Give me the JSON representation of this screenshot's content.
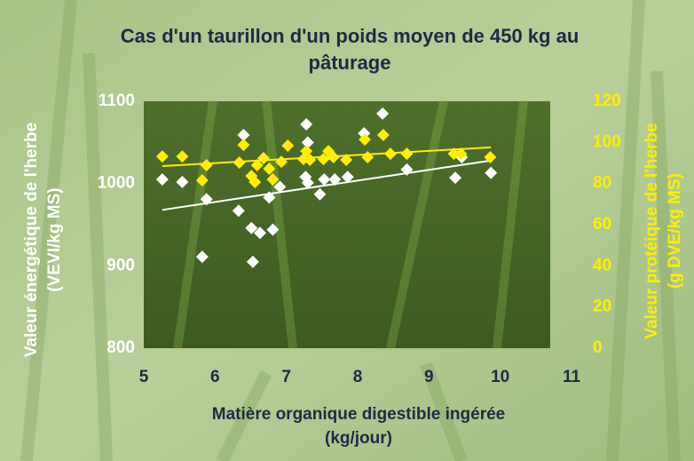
{
  "chart_data": {
    "type": "scatter",
    "title": [
      "Cas d'un taurillon d'un poids moyen de 450 kg au",
      "pâturage"
    ],
    "x_label": [
      "Matière organique digestible ingérée",
      "(kg/jour)"
    ],
    "y_label": [
      "Valeur énergétique de l'herbe",
      "(VEVI/kg MS)"
    ],
    "y2_label": [
      "Valeur protéique de l'herbe",
      "(g DVE/kg MS)"
    ],
    "xlim": [
      5,
      11
    ],
    "xticks": [
      5,
      6,
      7,
      8,
      9,
      10,
      11
    ],
    "ylim": [
      800,
      1100
    ],
    "yticks": [
      800,
      900,
      1000,
      1100
    ],
    "y2lim": [
      0,
      120
    ],
    "y2ticks": [
      0,
      20,
      40,
      60,
      80,
      100,
      120
    ],
    "series": [
      {
        "color": "#ffffff",
        "axis": "y",
        "x": [
          5.26,
          5.54,
          5.82,
          5.88,
          6.33,
          6.4,
          6.51,
          6.53,
          6.63,
          6.76,
          6.81,
          6.91,
          7.28,
          7.27,
          7.3,
          7.47,
          7.53,
          7.68,
          7.86,
          8.09,
          8.35,
          8.69,
          9.37,
          9.46,
          9.87,
          7.3
        ],
        "values": [
          1005,
          1002,
          911,
          981,
          967,
          1059,
          946,
          905,
          940,
          983,
          944,
          996,
          1072,
          1008,
          1001,
          987,
          1005,
          1005,
          1008,
          1061,
          1085,
          1017,
          1007,
          1032,
          1013,
          1050
        ]
      },
      {
        "color": "#ffee00",
        "axis": "y2",
        "x": [
          5.26,
          5.54,
          5.82,
          5.88,
          6.34,
          6.4,
          6.51,
          6.56,
          6.59,
          6.68,
          6.76,
          6.81,
          6.93,
          7.02,
          7.24,
          7.28,
          7.33,
          7.52,
          7.59,
          7.66,
          7.84,
          8.1,
          8.14,
          8.36,
          8.46,
          8.69,
          9.35,
          9.45,
          9.86
        ],
        "values": [
          93.2,
          93.2,
          81.6,
          88.9,
          90.2,
          98.8,
          83.7,
          80.7,
          88.9,
          92.4,
          87.2,
          82.0,
          90.6,
          98.4,
          91.9,
          95.8,
          91.5,
          91.9,
          95.8,
          92.8,
          91.5,
          101.4,
          92.8,
          103.6,
          94.5,
          94.5,
          94.5,
          94.5,
          92.8
        ]
      }
    ],
    "trendlines": [
      {
        "color": "#ffffff",
        "axis": "y",
        "x": [
          5.26,
          9.87
        ],
        "values": [
          968,
          1028
        ]
      },
      {
        "color": "#ffee00",
        "axis": "y2",
        "x": [
          5.26,
          9.87
        ],
        "values": [
          88.5,
          97.6
        ]
      }
    ]
  }
}
